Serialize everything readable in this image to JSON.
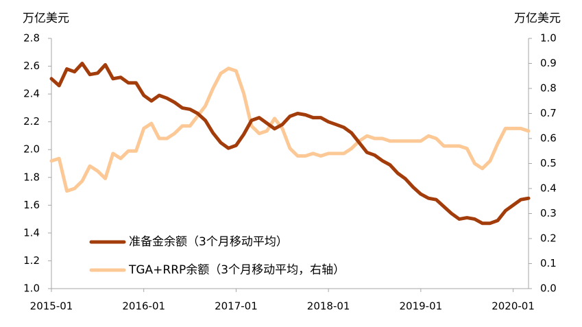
{
  "chart_data": {
    "type": "line",
    "left_axis": {
      "unit_label": "万亿美元",
      "ylim": [
        1.0,
        2.8
      ],
      "ticks": [
        1.0,
        1.2,
        1.4,
        1.6,
        1.8,
        2.0,
        2.2,
        2.4,
        2.6,
        2.8
      ],
      "tick_labels": [
        "1.0",
        "1.2",
        "1.4",
        "1.6",
        "1.8",
        "2.0",
        "2.2",
        "2.4",
        "2.6",
        "2.8"
      ]
    },
    "right_axis": {
      "unit_label": "万亿美元",
      "ylim": [
        0.0,
        1.0
      ],
      "ticks": [
        0.0,
        0.1,
        0.2,
        0.3,
        0.4,
        0.5,
        0.6,
        0.7,
        0.8,
        0.9,
        1.0
      ],
      "tick_labels": [
        "0.0",
        "0.1",
        "0.2",
        "0.3",
        "0.4",
        "0.5",
        "0.6",
        "0.7",
        "0.8",
        "0.9",
        "1.0"
      ]
    },
    "x_ticks": [
      "2015-01",
      "2016-01",
      "2017-01",
      "2018-01",
      "2019-01",
      "2020-01"
    ],
    "x_start": "2015-01",
    "x_end": "2020-03",
    "legend_position": "bottom-left",
    "grid": false,
    "series": [
      {
        "name": "准备金余额（3个月移动平均）",
        "axis": "left",
        "color": "#a33c0b",
        "x": [
          "2015-01",
          "2015-02",
          "2015-03",
          "2015-04",
          "2015-05",
          "2015-06",
          "2015-07",
          "2015-08",
          "2015-09",
          "2015-10",
          "2015-11",
          "2015-12",
          "2016-01",
          "2016-02",
          "2016-03",
          "2016-04",
          "2016-05",
          "2016-06",
          "2016-07",
          "2016-08",
          "2016-09",
          "2016-10",
          "2016-11",
          "2016-12",
          "2017-01",
          "2017-02",
          "2017-03",
          "2017-04",
          "2017-05",
          "2017-06",
          "2017-07",
          "2017-08",
          "2017-09",
          "2017-10",
          "2017-11",
          "2017-12",
          "2018-01",
          "2018-02",
          "2018-03",
          "2018-04",
          "2018-05",
          "2018-06",
          "2018-07",
          "2018-08",
          "2018-09",
          "2018-10",
          "2018-11",
          "2018-12",
          "2019-01",
          "2019-02",
          "2019-03",
          "2019-04",
          "2019-05",
          "2019-06",
          "2019-07",
          "2019-08",
          "2019-09",
          "2019-10",
          "2019-11",
          "2019-12",
          "2020-01",
          "2020-02",
          "2020-03"
        ],
        "values": [
          2.51,
          2.46,
          2.58,
          2.56,
          2.62,
          2.54,
          2.55,
          2.61,
          2.51,
          2.52,
          2.48,
          2.48,
          2.39,
          2.35,
          2.39,
          2.37,
          2.34,
          2.3,
          2.29,
          2.26,
          2.21,
          2.12,
          2.05,
          2.01,
          2.03,
          2.11,
          2.21,
          2.23,
          2.19,
          2.15,
          2.18,
          2.24,
          2.26,
          2.25,
          2.23,
          2.23,
          2.2,
          2.18,
          2.16,
          2.12,
          2.05,
          1.98,
          1.96,
          1.92,
          1.89,
          1.83,
          1.79,
          1.73,
          1.68,
          1.65,
          1.64,
          1.59,
          1.54,
          1.5,
          1.51,
          1.5,
          1.47,
          1.47,
          1.49,
          1.56,
          1.6,
          1.64,
          1.65
        ]
      },
      {
        "name": "TGA+RRP余额（3个月移动平均，右轴）",
        "axis": "right",
        "color": "#fcc996",
        "x": [
          "2015-01",
          "2015-02",
          "2015-03",
          "2015-04",
          "2015-05",
          "2015-06",
          "2015-07",
          "2015-08",
          "2015-09",
          "2015-10",
          "2015-11",
          "2015-12",
          "2016-01",
          "2016-02",
          "2016-03",
          "2016-04",
          "2016-05",
          "2016-06",
          "2016-07",
          "2016-08",
          "2016-09",
          "2016-10",
          "2016-11",
          "2016-12",
          "2017-01",
          "2017-02",
          "2017-03",
          "2017-04",
          "2017-05",
          "2017-06",
          "2017-07",
          "2017-08",
          "2017-09",
          "2017-10",
          "2017-11",
          "2017-12",
          "2018-01",
          "2018-02",
          "2018-03",
          "2018-04",
          "2018-05",
          "2018-06",
          "2018-07",
          "2018-08",
          "2018-09",
          "2018-10",
          "2018-11",
          "2018-12",
          "2019-01",
          "2019-02",
          "2019-03",
          "2019-04",
          "2019-05",
          "2019-06",
          "2019-07",
          "2019-08",
          "2019-09",
          "2019-10",
          "2019-11",
          "2019-12",
          "2020-01",
          "2020-02",
          "2020-03"
        ],
        "values": [
          0.51,
          0.52,
          0.39,
          0.4,
          0.43,
          0.49,
          0.47,
          0.44,
          0.54,
          0.52,
          0.55,
          0.55,
          0.64,
          0.66,
          0.6,
          0.6,
          0.62,
          0.65,
          0.65,
          0.69,
          0.73,
          0.8,
          0.86,
          0.88,
          0.87,
          0.78,
          0.65,
          0.62,
          0.63,
          0.68,
          0.64,
          0.56,
          0.53,
          0.53,
          0.54,
          0.53,
          0.54,
          0.54,
          0.54,
          0.56,
          0.59,
          0.61,
          0.6,
          0.6,
          0.59,
          0.59,
          0.59,
          0.59,
          0.59,
          0.61,
          0.6,
          0.57,
          0.57,
          0.57,
          0.56,
          0.5,
          0.48,
          0.51,
          0.58,
          0.64,
          0.64,
          0.64,
          0.63
        ]
      }
    ]
  }
}
